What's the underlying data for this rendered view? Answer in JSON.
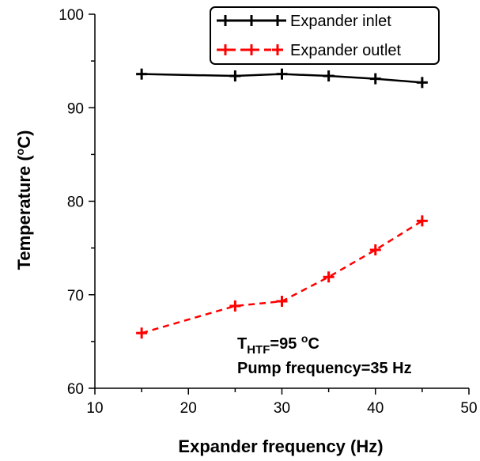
{
  "chart_data": {
    "type": "line",
    "xlabel": "Expander frequency (Hz)",
    "ylabel_main": "Temperature (",
    "ylabel_sup": "o",
    "ylabel_end": "C)",
    "xlim": [
      10,
      50
    ],
    "ylim": [
      60,
      100
    ],
    "xticks": [
      10,
      20,
      30,
      40,
      50
    ],
    "yticks": [
      60,
      70,
      80,
      90,
      100
    ],
    "grid": false,
    "legend_position": "top-right",
    "series": [
      {
        "name": "Expander inlet",
        "color": "#000000",
        "line_style": "solid",
        "marker": "plus",
        "x": [
          15,
          25,
          30,
          35,
          40,
          45
        ],
        "y": [
          93.6,
          93.4,
          93.6,
          93.4,
          93.1,
          92.7
        ]
      },
      {
        "name": "Expander outlet",
        "color": "#ff0000",
        "line_style": "dashed",
        "marker": "plus",
        "x": [
          15,
          25,
          30,
          35,
          40,
          45
        ],
        "y": [
          65.9,
          68.8,
          69.3,
          71.9,
          74.8,
          77.9
        ]
      }
    ],
    "annotation": {
      "line1_main": "T",
      "line1_sub": "HTF",
      "line1_eq": "=95 ",
      "line1_sup": "o",
      "line1_unit": "C",
      "line2": "Pump frequency=35 Hz"
    }
  }
}
